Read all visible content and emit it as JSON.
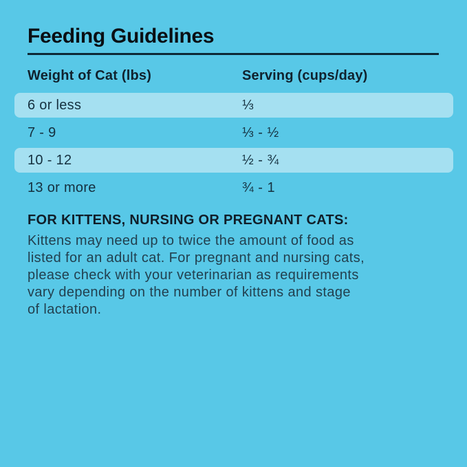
{
  "page": {
    "background_color": "#58c8e7",
    "row_highlight_color": "#a5e0f1",
    "rule_color": "#0e2936"
  },
  "title": "Feeding Guidelines",
  "table": {
    "columns": [
      {
        "label": "Weight of Cat (lbs)"
      },
      {
        "label": "Serving (cups/day)"
      }
    ],
    "rows": [
      {
        "weight": "6 or less",
        "serving": "⅓",
        "highlighted": true
      },
      {
        "weight": "7 - 9",
        "serving": "⅓ - ½",
        "highlighted": false
      },
      {
        "weight": "10 - 12",
        "serving": "½ - ¾",
        "highlighted": true
      },
      {
        "weight": "13 or more",
        "serving": "¾ - 1",
        "highlighted": false
      }
    ]
  },
  "note": {
    "heading": "FOR KITTENS, NURSING OR PREGNANT CATS:",
    "body": "Kittens may need up to twice the amount of food as\nlisted for an adult cat. For pregnant and nursing cats,\nplease check with your veterinarian as requirements\nvary depending on the number of kittens and stage\nof lactation."
  }
}
